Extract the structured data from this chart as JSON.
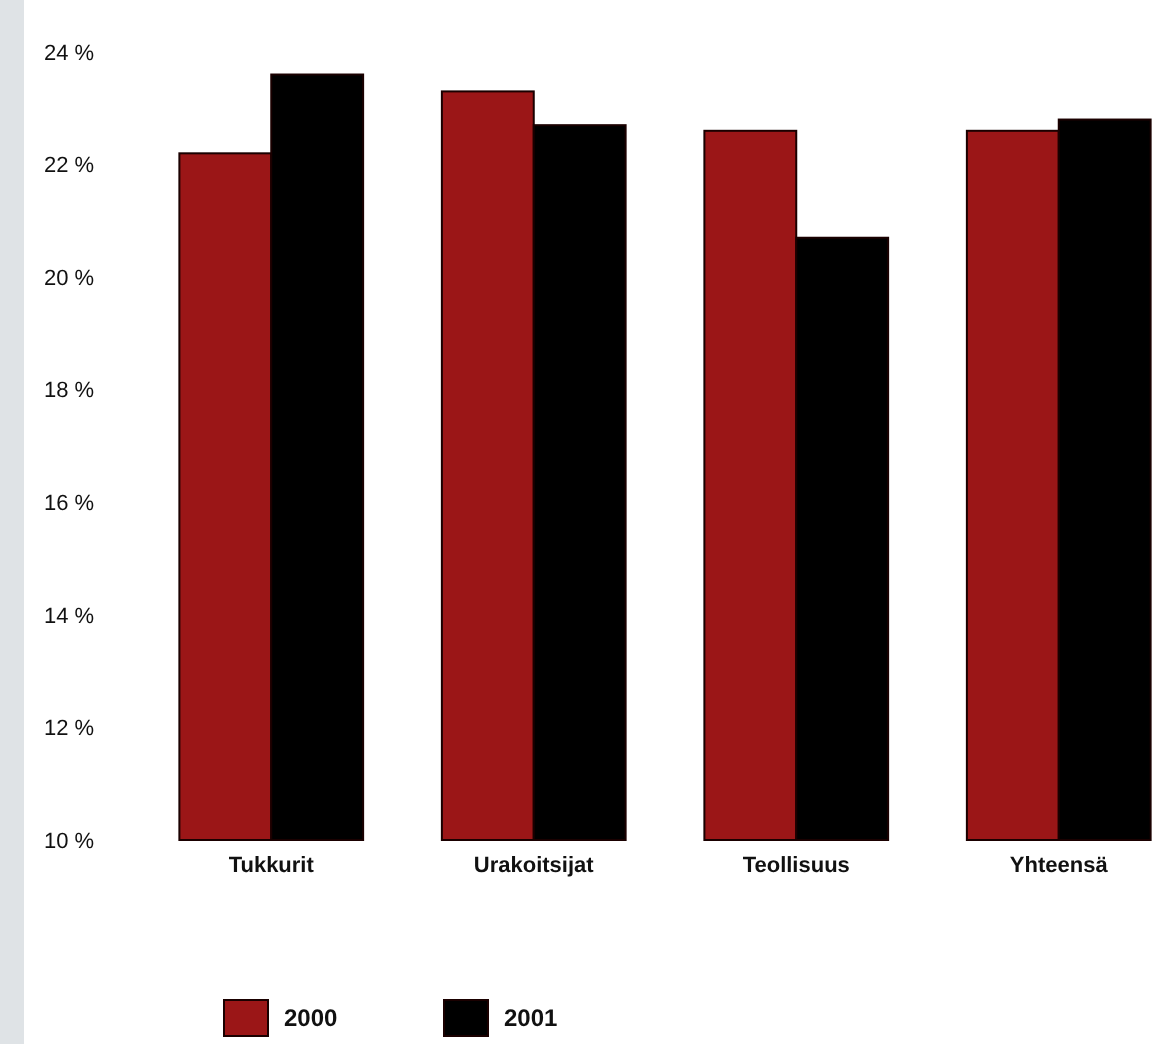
{
  "chart_data": {
    "type": "bar",
    "categories": [
      "Tukkurit",
      "Urakoitsijat",
      "Teollisuus",
      "Yhteensä"
    ],
    "series": [
      {
        "name": "2000",
        "color": "#9b1617",
        "values": [
          22.2,
          23.3,
          22.6,
          22.6
        ]
      },
      {
        "name": "2001",
        "color": "#000000",
        "values": [
          23.6,
          22.7,
          20.7,
          22.8
        ]
      }
    ],
    "ylim": [
      10,
      24
    ],
    "yticks": [
      {
        "value": 10,
        "label": "10 %"
      },
      {
        "value": 12,
        "label": "12 %"
      },
      {
        "value": 14,
        "label": "14 %"
      },
      {
        "value": 16,
        "label": "16 %"
      },
      {
        "value": 18,
        "label": "18 %"
      },
      {
        "value": 20,
        "label": "20 %"
      },
      {
        "value": 22,
        "label": "22 %"
      },
      {
        "value": 24,
        "label": "24 %"
      }
    ],
    "grid": false,
    "legend": "bottom left"
  }
}
